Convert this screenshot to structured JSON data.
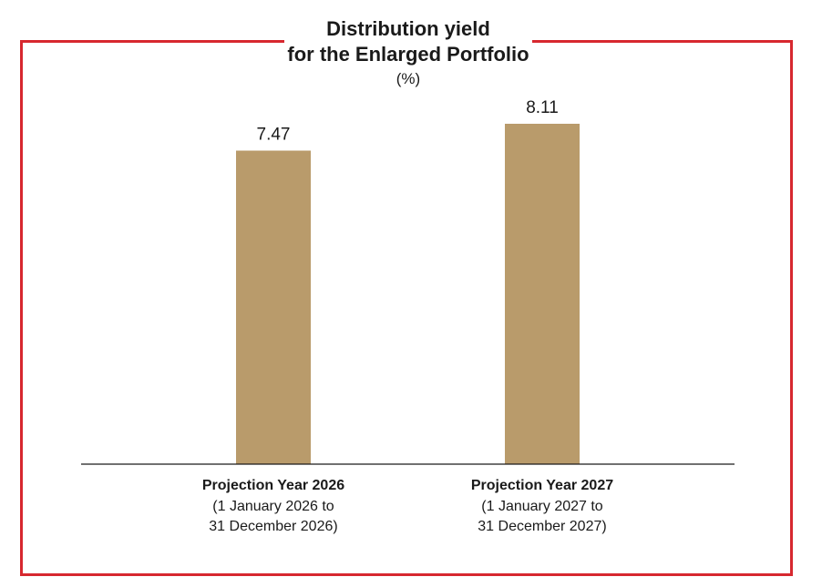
{
  "chart_data": {
    "type": "bar",
    "title": "Distribution yield\nfor the Enlarged Portfolio",
    "title_lines": [
      "Distribution yield",
      "for the Enlarged Portfolio"
    ],
    "unit": "(%)",
    "categories": [
      {
        "title": "Projection Year 2026",
        "subtitle_lines": [
          "(1 January 2026 to",
          "31 December 2026)"
        ]
      },
      {
        "title": "Projection Year 2027",
        "subtitle_lines": [
          "(1 January 2027 to",
          "31 December 2027)"
        ]
      }
    ],
    "values": [
      7.47,
      8.11
    ],
    "value_labels": [
      "7.47",
      "8.11"
    ],
    "ylim": [
      0,
      8.11
    ],
    "bar_color": "#b99b6b",
    "frame_color": "#d7282f",
    "axis_color": "#1a1a1a",
    "grid": false,
    "legend": "none"
  }
}
